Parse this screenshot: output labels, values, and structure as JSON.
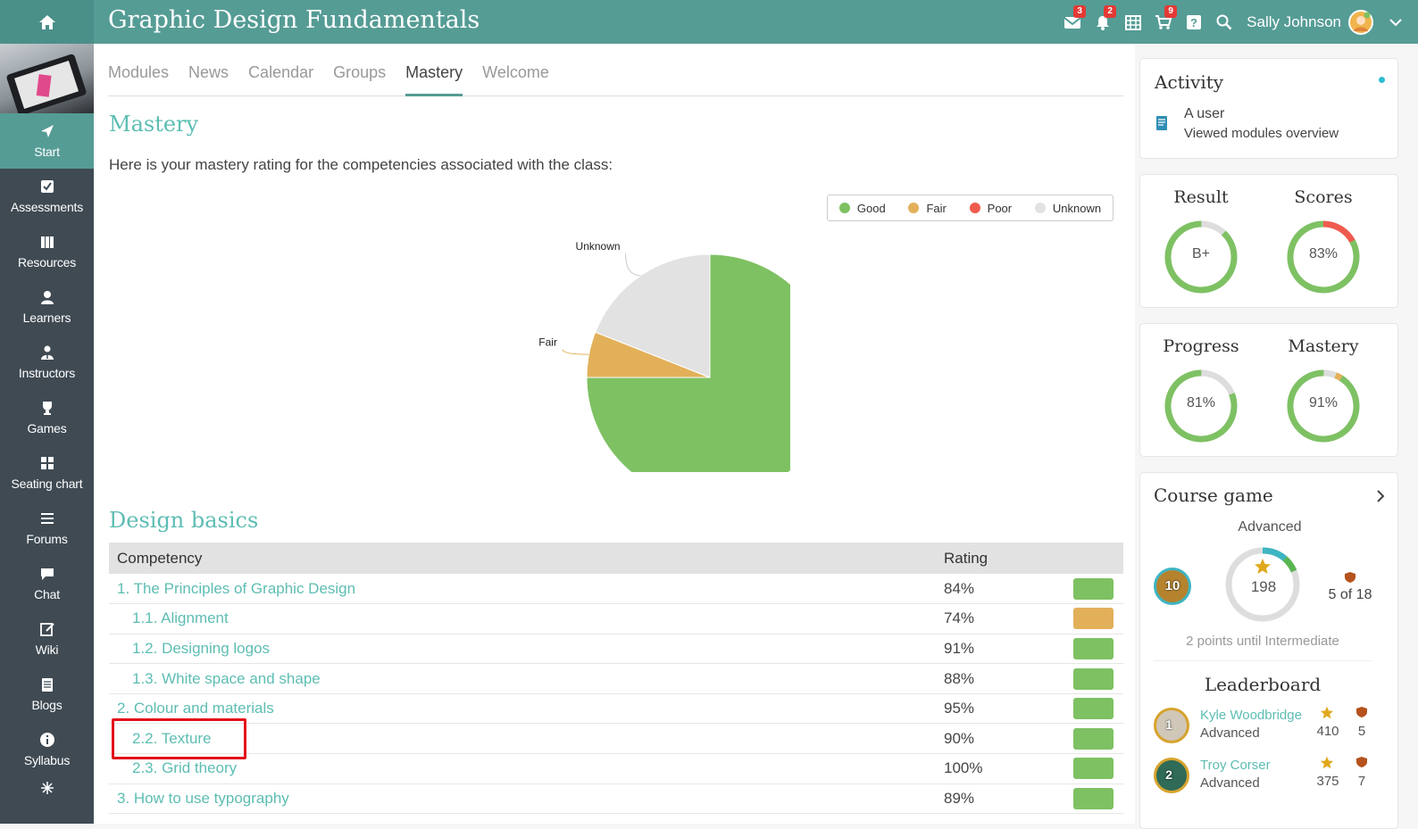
{
  "header": {
    "title": "Graphic Design Fundamentals",
    "user_name": "Sally Johnson",
    "badges": {
      "messages": "3",
      "notifications": "2",
      "cart": "9"
    }
  },
  "sidebar": {
    "items": [
      {
        "label": "Start",
        "icon": "paper-plane-icon",
        "active": true
      },
      {
        "label": "Assessments",
        "icon": "checkbox-icon"
      },
      {
        "label": "Resources",
        "icon": "books-icon"
      },
      {
        "label": "Learners",
        "icon": "person-icon"
      },
      {
        "label": "Instructors",
        "icon": "instructor-icon"
      },
      {
        "label": "Games",
        "icon": "trophy-icon"
      },
      {
        "label": "Seating chart",
        "icon": "seating-grid-icon"
      },
      {
        "label": "Forums",
        "icon": "list-icon"
      },
      {
        "label": "Chat",
        "icon": "chat-bubble-icon"
      },
      {
        "label": "Wiki",
        "icon": "edit-icon"
      },
      {
        "label": "Blogs",
        "icon": "notebook-icon"
      },
      {
        "label": "Syllabus",
        "icon": "info-icon"
      }
    ]
  },
  "tabs": [
    "Modules",
    "News",
    "Calendar",
    "Groups",
    "Mastery",
    "Welcome"
  ],
  "active_tab": "Mastery",
  "main": {
    "heading": "Mastery",
    "intro": "Here is your mastery rating for the competencies associated with the class:",
    "section_heading": "Design basics",
    "table": {
      "headers": {
        "competency": "Competency",
        "rating": "Rating"
      },
      "rows": [
        {
          "name": "1. The Principles of Graphic Design",
          "rating": "84%",
          "status": "good",
          "indent": 0
        },
        {
          "name": "1.1. Alignment",
          "rating": "74%",
          "status": "fair",
          "indent": 1
        },
        {
          "name": "1.2. Designing logos",
          "rating": "91%",
          "status": "good",
          "indent": 1
        },
        {
          "name": "1.3. White space and shape",
          "rating": "88%",
          "status": "good",
          "indent": 1
        },
        {
          "name": "2. Colour and materials",
          "rating": "95%",
          "status": "good",
          "indent": 0
        },
        {
          "name": "2.2. Texture",
          "rating": "90%",
          "status": "good",
          "indent": 1
        },
        {
          "name": "2.3. Grid theory",
          "rating": "100%",
          "status": "good",
          "indent": 1
        },
        {
          "name": "3. How to use typography",
          "rating": "89%",
          "status": "good",
          "indent": 0
        }
      ]
    }
  },
  "colors": {
    "good": "#7ec163",
    "fair": "#e3b05a",
    "poor": "#ef5b4e",
    "unknown": "#e2e2e2",
    "teal": "#559c95",
    "accent": "#5dbdb3"
  },
  "chart_data": {
    "type": "pie",
    "slices": [
      {
        "label": "Good",
        "value": 75
      },
      {
        "label": "Fair",
        "value": 6
      },
      {
        "label": "Poor",
        "value": 0
      },
      {
        "label": "Unknown",
        "value": 19
      }
    ],
    "legend": [
      "Good",
      "Fair",
      "Poor",
      "Unknown"
    ],
    "legend_position": "top-right"
  },
  "activity": {
    "title": "Activity",
    "user": "A user",
    "action": "Viewed modules overview"
  },
  "stats": {
    "result": {
      "label": "Result",
      "value": "B+",
      "fraction": 0.88
    },
    "scores": {
      "label": "Scores",
      "value": "83%",
      "fraction": 0.83
    },
    "progress": {
      "label": "Progress",
      "value": "81%",
      "fraction": 0.81
    },
    "mastery": {
      "label": "Mastery",
      "value": "91%",
      "fraction": 0.91
    }
  },
  "course_game": {
    "title": "Course game",
    "level": "Advanced",
    "rank": "10",
    "points": "198",
    "badges": "5 of 18",
    "next_level_text": "2 points until Intermediate",
    "leaderboard_title": "Leaderboard",
    "leaderboard": [
      {
        "rank": "1",
        "name": "Kyle Woodbridge",
        "level": "Advanced",
        "points": "410",
        "badges": "5"
      },
      {
        "rank": "2",
        "name": "Troy Corser",
        "level": "Advanced",
        "points": "375",
        "badges": "7"
      }
    ]
  }
}
